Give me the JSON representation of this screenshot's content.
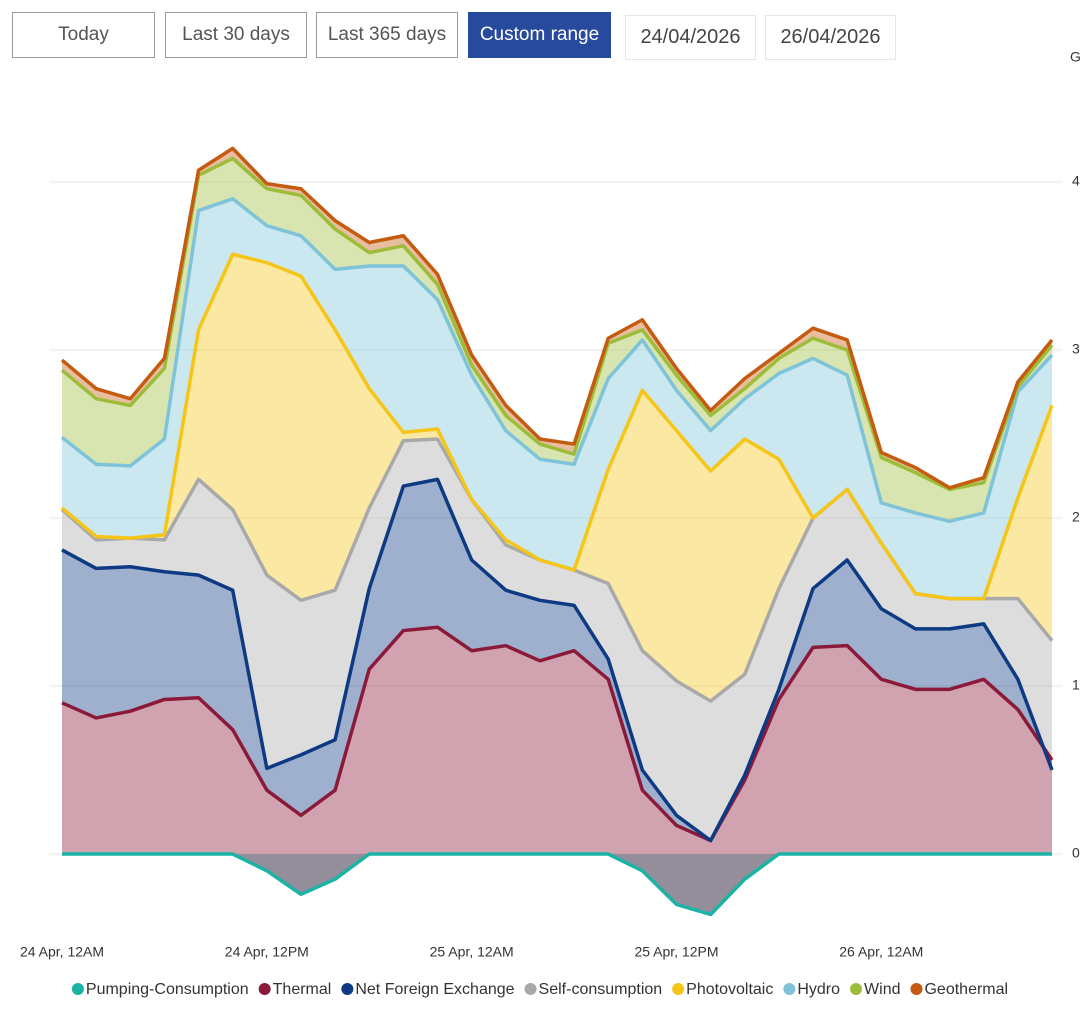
{
  "controls": {
    "buttons": [
      "Today",
      "Last 30 days",
      "Last 365 days",
      "Custom range"
    ],
    "selected_button": 3,
    "date_from": "24/04/2026",
    "date_to": "26/04/2026"
  },
  "chart_data": {
    "type": "stacked-area",
    "y_axis_label": "G",
    "x": [
      0,
      2,
      4,
      6,
      8,
      10,
      12,
      14,
      16,
      18,
      20,
      22,
      24,
      26,
      28,
      30,
      32,
      34,
      36,
      38,
      40,
      42,
      44,
      46,
      48,
      50,
      52,
      54,
      56,
      58
    ],
    "xlim": [
      0,
      58
    ],
    "xticks": [
      {
        "value": 0,
        "label": "24 Apr, 12AM"
      },
      {
        "value": 12,
        "label": "24 Apr, 12PM"
      },
      {
        "value": 24,
        "label": "25 Apr, 12AM"
      },
      {
        "value": 36,
        "label": "25 Apr, 12PM"
      },
      {
        "value": 48,
        "label": "26 Apr, 12AM"
      }
    ],
    "ylim": [
      -0.5,
      4.5
    ],
    "yticks": [
      0,
      1,
      2,
      3,
      4
    ],
    "grid": true,
    "legend": "bottom",
    "series": [
      {
        "name": "Pumping-Consumption",
        "color": "#1ab3a6",
        "fill": "#948d9a",
        "values": [
          0,
          0,
          0,
          0,
          0,
          0,
          -0.1,
          -0.24,
          -0.15,
          0,
          0,
          0,
          0,
          0,
          0,
          0,
          0,
          -0.1,
          -0.3,
          -0.36,
          -0.15,
          0,
          0,
          0,
          0,
          0,
          0,
          0,
          0,
          0
        ]
      },
      {
        "name": "Thermal",
        "color": "#8b1a3a",
        "values": [
          0.9,
          0.81,
          0.85,
          0.92,
          0.93,
          0.74,
          0.38,
          0.23,
          0.38,
          1.1,
          1.33,
          1.35,
          1.21,
          1.24,
          1.15,
          1.21,
          1.04,
          0.38,
          0.17,
          0.08,
          0.44,
          0.92,
          1.23,
          1.24,
          1.04,
          0.98,
          0.98,
          1.04,
          0.86,
          0.56
        ]
      },
      {
        "name": "Net Foreign Exchange",
        "color": "#0d3a82",
        "values": [
          0.91,
          0.89,
          0.86,
          0.76,
          0.73,
          0.83,
          0.13,
          0.36,
          0.3,
          0.48,
          0.86,
          0.88,
          0.54,
          0.33,
          0.36,
          0.27,
          0.12,
          0.12,
          0.06,
          0,
          0.03,
          0.06,
          0.35,
          0.51,
          0.42,
          0.36,
          0.36,
          0.33,
          0.18,
          -0.06
        ]
      },
      {
        "name": "Self-consumption",
        "color": "#a9a9a9",
        "values": [
          0.24,
          0.17,
          0.17,
          0.19,
          0.57,
          0.48,
          1.15,
          0.92,
          0.89,
          0.48,
          0.27,
          0.24,
          0.36,
          0.27,
          0.24,
          0.21,
          0.45,
          0.71,
          0.8,
          0.83,
          0.6,
          0.6,
          0.42,
          0.42,
          0.39,
          0.21,
          0.18,
          0.15,
          0.48,
          0.77
        ]
      },
      {
        "name": "Photovoltaic",
        "color": "#f5c518",
        "values": [
          0.01,
          0.02,
          0,
          0.03,
          0.89,
          1.52,
          1.86,
          1.93,
          1.55,
          0.71,
          0.05,
          0.06,
          0,
          0.03,
          0,
          0,
          0.68,
          1.55,
          1.49,
          1.37,
          1.4,
          0.77,
          0,
          0,
          0,
          0,
          0,
          0,
          0.6,
          1.4
        ]
      },
      {
        "name": "Hydro",
        "color": "#7ec3d8",
        "values": [
          0.42,
          0.43,
          0.43,
          0.57,
          0.71,
          0.33,
          0.22,
          0.24,
          0.36,
          0.73,
          0.99,
          0.77,
          0.74,
          0.65,
          0.6,
          0.63,
          0.54,
          0.3,
          0.24,
          0.24,
          0.24,
          0.51,
          0.95,
          0.68,
          0.24,
          0.48,
          0.46,
          0.51,
          0.63,
          0.3
        ]
      },
      {
        "name": "Wind",
        "color": "#9dbd3a",
        "values": [
          0.4,
          0.39,
          0.36,
          0.42,
          0.21,
          0.24,
          0.22,
          0.24,
          0.24,
          0.08,
          0.12,
          0.09,
          0.06,
          0.09,
          0.09,
          0.06,
          0.21,
          0.06,
          0.09,
          0.09,
          0.06,
          0.09,
          0.12,
          0.15,
          0.27,
          0.24,
          0.19,
          0.18,
          0.03,
          0.06
        ]
      },
      {
        "name": "Geothermal",
        "color": "#c55a11",
        "values": [
          0.06,
          0.06,
          0.04,
          0.06,
          0.03,
          0.06,
          0.03,
          0.04,
          0.05,
          0.06,
          0.06,
          0.06,
          0.06,
          0.06,
          0.03,
          0.06,
          0.03,
          0.06,
          0.04,
          0.03,
          0.06,
          0.03,
          0.06,
          0.06,
          0.03,
          0.03,
          0.01,
          0.03,
          0.03,
          0.03
        ]
      }
    ]
  }
}
